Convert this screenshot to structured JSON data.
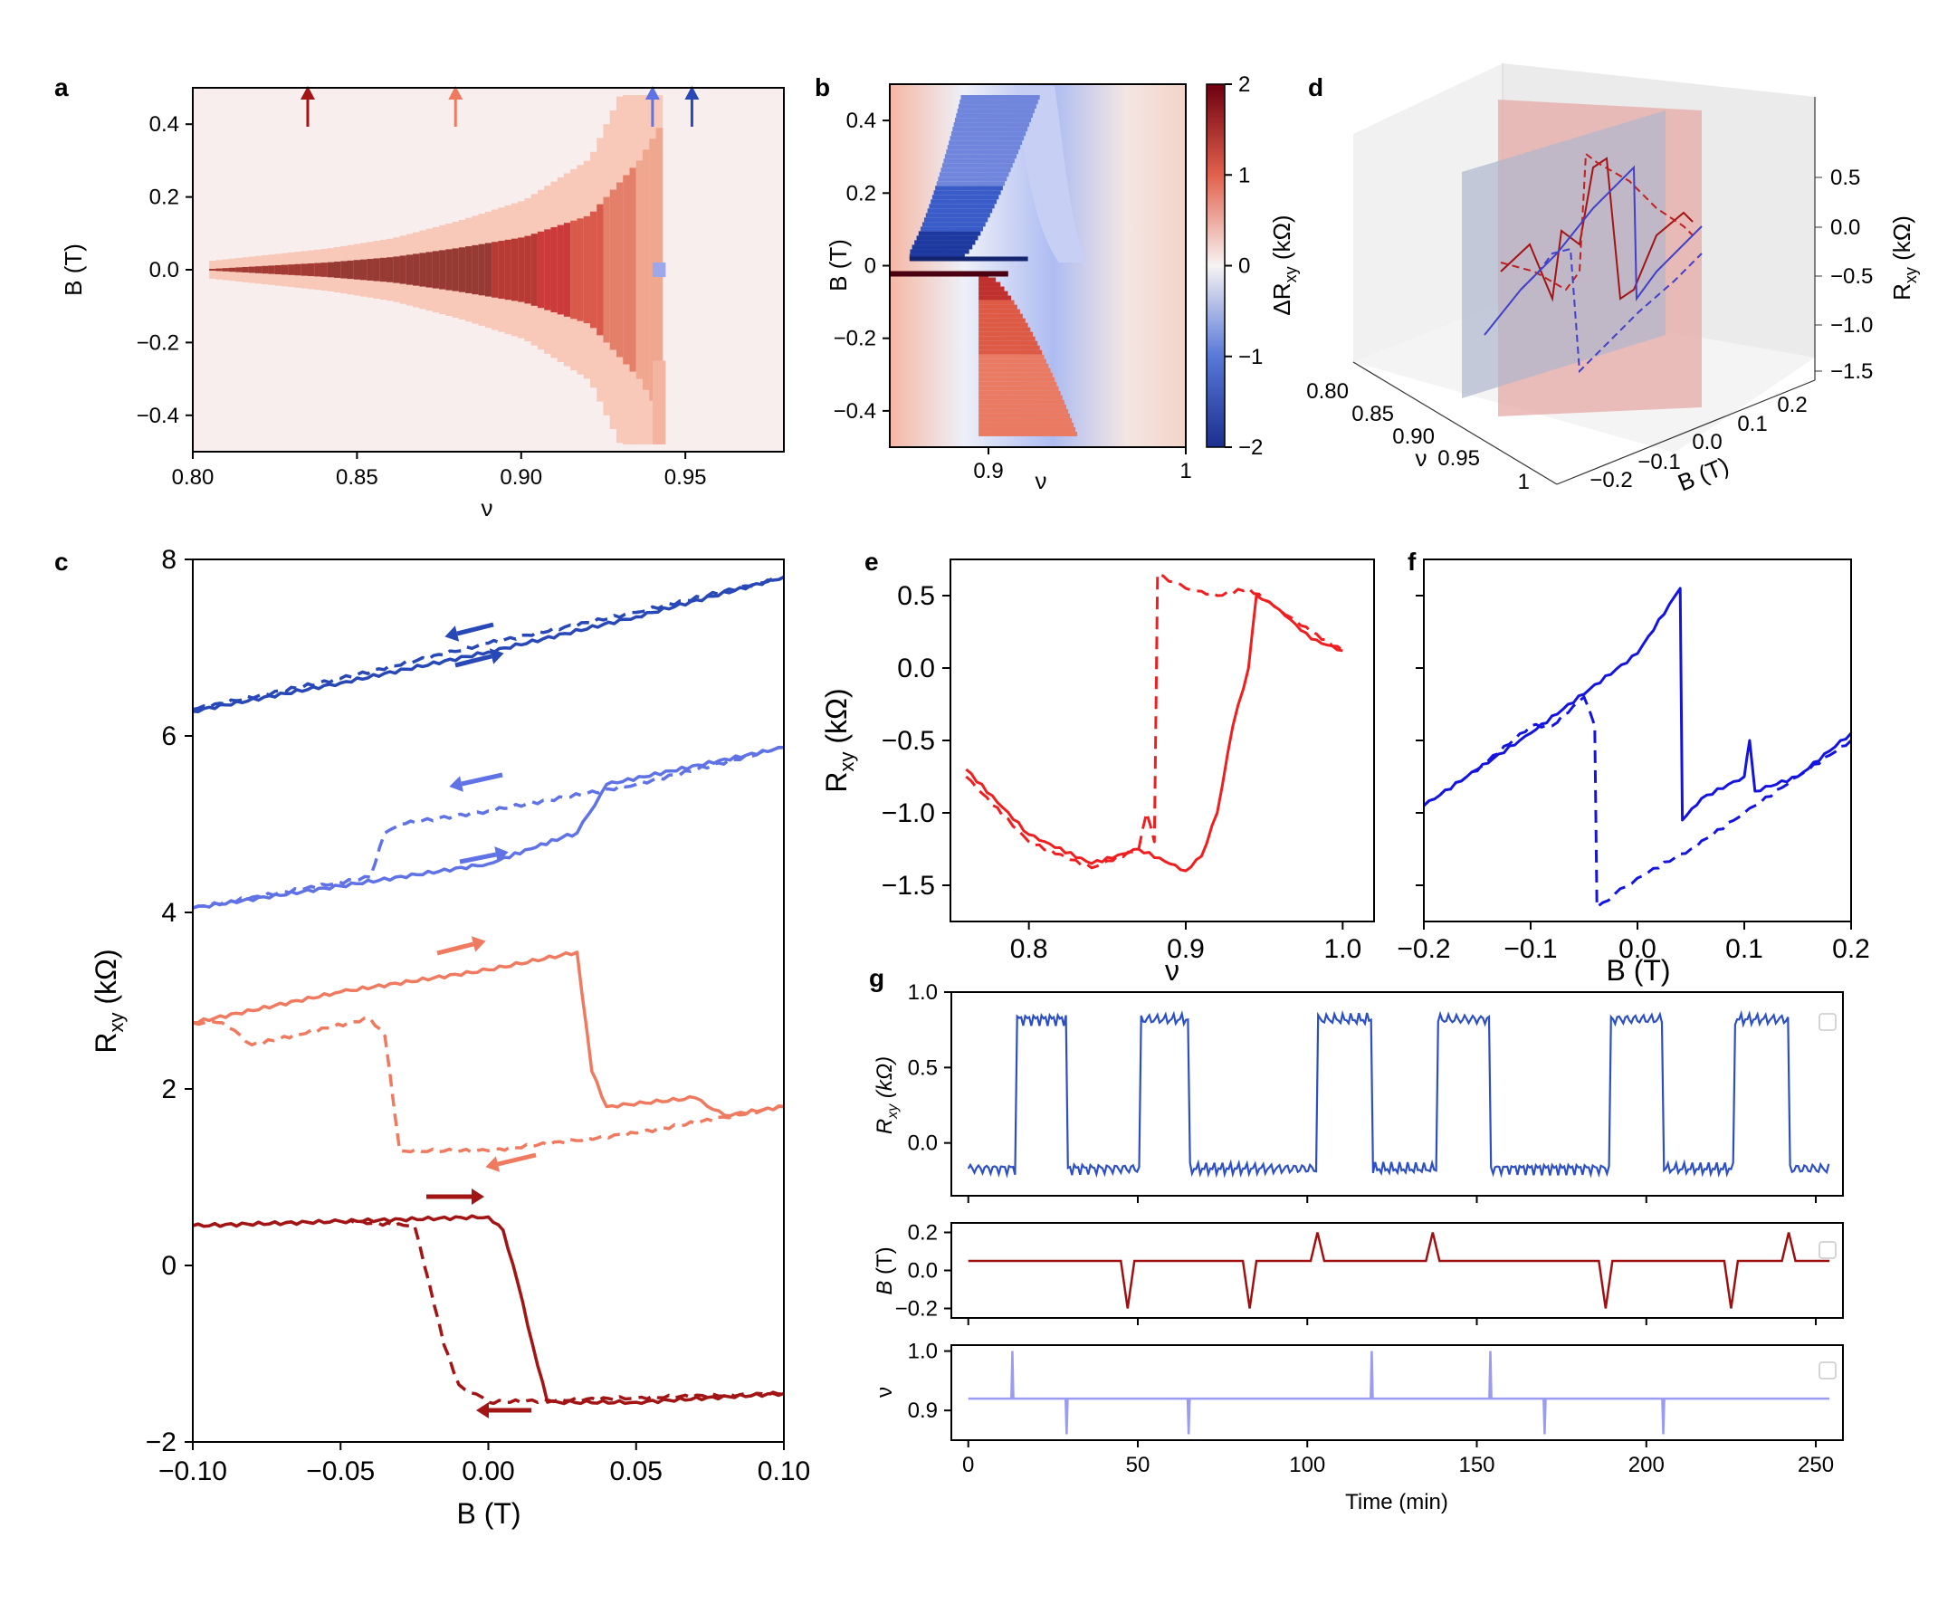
{
  "colors": {
    "dark_red": "#a31414",
    "salmon": "#f07a5f",
    "light_blue": "#5f72e6",
    "dark_blue": "#2848b8",
    "red_e": "#f01e1e",
    "blue_f": "#1414e0",
    "g_blue": "#2d4fc4",
    "g_red": "#a01010",
    "g_violet": "#9a9cf4"
  },
  "chart_data": [
    {
      "panel": "a",
      "type": "heatmap",
      "xlabel": "ν",
      "ylabel": "B (T)",
      "xlim": [
        0.8,
        0.98
      ],
      "ylim": [
        -0.5,
        0.5
      ],
      "x_ticks": [
        "0.80",
        "0.85",
        "0.90",
        "0.95"
      ],
      "y_ticks": [
        "0.4",
        "0.2",
        "0.0",
        "−0.2",
        "−0.4"
      ],
      "arrows": [
        {
          "nu": 0.835,
          "color": "dark_red"
        },
        {
          "nu": 0.88,
          "color": "salmon"
        },
        {
          "nu": 0.94,
          "color": "light_blue"
        },
        {
          "nu": 0.952,
          "color": "dark_blue"
        }
      ],
      "hysteresis_width": [
        {
          "nu": 0.8,
          "half_width_T": 0.0
        },
        {
          "nu": 0.82,
          "half_width_T": 0.01
        },
        {
          "nu": 0.84,
          "half_width_T": 0.02
        },
        {
          "nu": 0.86,
          "half_width_T": 0.035
        },
        {
          "nu": 0.88,
          "half_width_T": 0.06
        },
        {
          "nu": 0.9,
          "half_width_T": 0.09
        },
        {
          "nu": 0.92,
          "half_width_T": 0.15
        },
        {
          "nu": 0.935,
          "half_width_T": 0.3
        },
        {
          "nu": 0.945,
          "half_width_T": 0.45
        }
      ]
    },
    {
      "panel": "b",
      "type": "heatmap",
      "xlabel": "ν",
      "ylabel": "B (T)",
      "xlim": [
        0.85,
        1.0
      ],
      "ylim": [
        -0.5,
        0.5
      ],
      "x_ticks": [
        "0.9",
        "1"
      ],
      "y_ticks": [
        "0.4",
        "0.2",
        "0",
        "−0.2",
        "−0.4"
      ],
      "colorbar_label": "ΔR",
      "colorbar_label_sub": "xy",
      "colorbar_label_unit": " (kΩ)",
      "colorbar_ticks": [
        "2",
        "1",
        "0",
        "−1",
        "−2"
      ],
      "colorbar_range": [
        -2,
        2
      ]
    },
    {
      "panel": "c",
      "type": "line",
      "xlabel": "B (T)",
      "ylabel": "R",
      "ylabel_sub": "xy",
      "ylabel_unit": "  (kΩ)",
      "xlim": [
        -0.1,
        0.1
      ],
      "ylim": [
        -2,
        8
      ],
      "x_ticks": [
        "−0.10",
        "−0.05",
        "0.00",
        "0.05",
        "0.10"
      ],
      "y_ticks": [
        "8",
        "6",
        "4",
        "2",
        "0",
        "−2"
      ],
      "series": [
        {
          "name": "dark blue up",
          "color": "dark_blue",
          "dash": false,
          "x": [
            -0.1,
            -0.05,
            0.0,
            0.05,
            0.1
          ],
          "y": [
            6.28,
            6.6,
            6.95,
            7.35,
            7.8
          ]
        },
        {
          "name": "dark blue down",
          "color": "dark_blue",
          "dash": true,
          "x": [
            -0.1,
            -0.05,
            0.0,
            0.05,
            0.1
          ],
          "y": [
            6.3,
            6.65,
            7.05,
            7.4,
            7.8
          ]
        },
        {
          "name": "light blue up",
          "color": "light_blue",
          "dash": false,
          "x": [
            -0.1,
            -0.05,
            0.0,
            0.025,
            0.03,
            0.04,
            0.1
          ],
          "y": [
            4.05,
            4.3,
            4.55,
            4.85,
            4.9,
            5.45,
            5.87
          ]
        },
        {
          "name": "light blue down",
          "color": "light_blue",
          "dash": true,
          "x": [
            -0.1,
            -0.04,
            -0.035,
            -0.03,
            0.0,
            0.05,
            0.1
          ],
          "y": [
            4.05,
            4.4,
            4.9,
            5.0,
            5.15,
            5.45,
            5.87
          ]
        },
        {
          "name": "salmon up",
          "color": "salmon",
          "dash": false,
          "x": [
            -0.1,
            -0.05,
            0.0,
            0.03,
            0.035,
            0.04,
            0.07,
            0.08,
            0.1
          ],
          "y": [
            2.75,
            3.1,
            3.35,
            3.55,
            2.2,
            1.8,
            1.9,
            1.7,
            1.8
          ]
        },
        {
          "name": "salmon down",
          "color": "salmon",
          "dash": true,
          "x": [
            -0.1,
            -0.09,
            -0.08,
            -0.04,
            -0.035,
            -0.03,
            0.0,
            0.05,
            0.1
          ],
          "y": [
            2.75,
            2.75,
            2.5,
            2.8,
            2.6,
            1.3,
            1.3,
            1.5,
            1.8
          ]
        },
        {
          "name": "dark red up",
          "color": "dark_red",
          "dash": false,
          "x": [
            -0.1,
            -0.05,
            0.0,
            0.005,
            0.01,
            0.015,
            0.02,
            0.05,
            0.1
          ],
          "y": [
            0.45,
            0.5,
            0.55,
            0.4,
            -0.2,
            -0.9,
            -1.55,
            -1.55,
            -1.45
          ]
        },
        {
          "name": "dark red down",
          "color": "dark_red",
          "dash": true,
          "x": [
            -0.1,
            -0.05,
            -0.025,
            -0.02,
            -0.015,
            -0.01,
            0.0,
            0.05,
            0.1
          ],
          "y": [
            0.45,
            0.5,
            0.45,
            -0.2,
            -0.9,
            -1.35,
            -1.55,
            -1.5,
            -1.45
          ]
        }
      ]
    },
    {
      "panel": "d",
      "type": "line",
      "xlabel": "B (T)",
      "ylabel": "ν",
      "zlabel": "R",
      "zlabel_sub": "xy",
      "zlabel_unit": " (kΩ)",
      "x_ticks": [
        "−0.2",
        "−0.1",
        "0.0",
        "0.1",
        "0.2"
      ],
      "y_ticks": [
        "0.80",
        "0.85",
        "0.90",
        "0.95",
        "1"
      ],
      "z_ticks": [
        "0.5",
        "0.0",
        "−0.5",
        "−1.0",
        "−1.5"
      ]
    },
    {
      "panel": "e",
      "type": "line",
      "xlabel": "ν",
      "ylabel": "R",
      "ylabel_sub": "xy",
      "ylabel_unit": " (kΩ)",
      "xlim": [
        0.75,
        1.02
      ],
      "ylim": [
        -1.75,
        0.75
      ],
      "x_ticks": [
        "0.8",
        "0.9",
        "1.0"
      ],
      "y_ticks": [
        "0.5",
        "0.0",
        "−0.5",
        "−1.0",
        "−1.5"
      ],
      "series": [
        {
          "name": "solid",
          "color": "red_e",
          "dash": false,
          "x": [
            0.76,
            0.8,
            0.84,
            0.87,
            0.9,
            0.91,
            0.92,
            0.93,
            0.94,
            0.945,
            0.96,
            0.98,
            1.0
          ],
          "y": [
            -0.7,
            -1.15,
            -1.35,
            -1.25,
            -1.4,
            -1.3,
            -1.0,
            -0.4,
            0.0,
            0.5,
            0.4,
            0.2,
            0.12
          ]
        },
        {
          "name": "dashed",
          "color": "red_e",
          "dash": true,
          "x": [
            0.76,
            0.8,
            0.84,
            0.87,
            0.875,
            0.88,
            0.882,
            0.9,
            0.92,
            0.94,
            0.96,
            0.98,
            1.0
          ],
          "y": [
            -0.75,
            -1.2,
            -1.38,
            -1.25,
            -1.0,
            -1.2,
            0.65,
            0.55,
            0.5,
            0.55,
            0.4,
            0.25,
            0.12
          ]
        }
      ]
    },
    {
      "panel": "f",
      "type": "line",
      "xlabel": "B (T)",
      "xlim": [
        -0.2,
        0.2
      ],
      "ylim": [
        -1.75,
        0.75
      ],
      "x_ticks": [
        "−0.2",
        "−0.1",
        "0.0",
        "0.1",
        "0.2"
      ],
      "series": [
        {
          "name": "solid",
          "color": "blue_f",
          "dash": false,
          "x": [
            -0.2,
            -0.1,
            0.0,
            0.04,
            0.042,
            0.06,
            0.1,
            0.105,
            0.11,
            0.15,
            0.2
          ],
          "y": [
            -0.95,
            -0.45,
            0.1,
            0.55,
            -1.05,
            -0.9,
            -0.75,
            -0.5,
            -0.85,
            -0.75,
            -0.45
          ]
        },
        {
          "name": "dashed",
          "color": "blue_f",
          "dash": true,
          "x": [
            -0.2,
            -0.15,
            -0.1,
            -0.08,
            -0.05,
            -0.04,
            -0.038,
            0.0,
            0.05,
            0.1,
            0.15,
            0.2
          ],
          "y": [
            -0.95,
            -0.7,
            -0.4,
            -0.4,
            -0.2,
            -0.4,
            -1.65,
            -1.45,
            -1.25,
            -1.0,
            -0.75,
            -0.5
          ]
        }
      ]
    },
    {
      "panel": "g",
      "type": "line",
      "xlabel": "Time (min)",
      "xlim": [
        -5,
        258
      ],
      "x_ticks": [
        "0",
        "50",
        "100",
        "150",
        "200",
        "250"
      ],
      "subplots": [
        {
          "ylabel": "R",
          "ylabel_sub": "xy",
          "ylabel_unit": " (kΩ)",
          "ylim": [
            -0.35,
            1.0
          ],
          "y_ticks": [
            "1.0",
            "0.5",
            "0.0"
          ],
          "high": 0.82,
          "low": -0.17,
          "high_intervals": [
            [
              13,
              29
            ],
            [
              50,
              65
            ],
            [
              102,
              119
            ],
            [
              137,
              154
            ],
            [
              188,
              205
            ],
            [
              225,
              242
            ]
          ],
          "tail_low": [
            243,
            254
          ]
        },
        {
          "ylabel": "B",
          "ylabel_unit": " (T)",
          "ylim": [
            -0.25,
            0.25
          ],
          "y_ticks": [
            "0.2",
            "0.0",
            "−0.2"
          ],
          "baseline": 0.05,
          "pulses": [
            {
              "t": 47,
              "B": -0.2
            },
            {
              "t": 83,
              "B": -0.2
            },
            {
              "t": 103,
              "B": 0.2
            },
            {
              "t": 137,
              "B": 0.2
            },
            {
              "t": 188,
              "B": -0.2
            },
            {
              "t": 225,
              "B": -0.2
            },
            {
              "t": 242,
              "B": 0.2
            }
          ]
        },
        {
          "ylabel": "ν",
          "ylim": [
            0.85,
            1.01
          ],
          "y_ticks": [
            "1.0",
            "0.9"
          ],
          "baseline": 0.92,
          "pulses": [
            {
              "t": 13,
              "nu": 1.0
            },
            {
              "t": 29,
              "nu": 0.86
            },
            {
              "t": 65,
              "nu": 0.86
            },
            {
              "t": 119,
              "nu": 1.0
            },
            {
              "t": 154,
              "nu": 1.0
            },
            {
              "t": 170,
              "nu": 0.86
            },
            {
              "t": 205,
              "nu": 0.86
            }
          ]
        }
      ]
    }
  ],
  "panel_labels": [
    "a",
    "b",
    "c",
    "d",
    "e",
    "f",
    "g"
  ]
}
